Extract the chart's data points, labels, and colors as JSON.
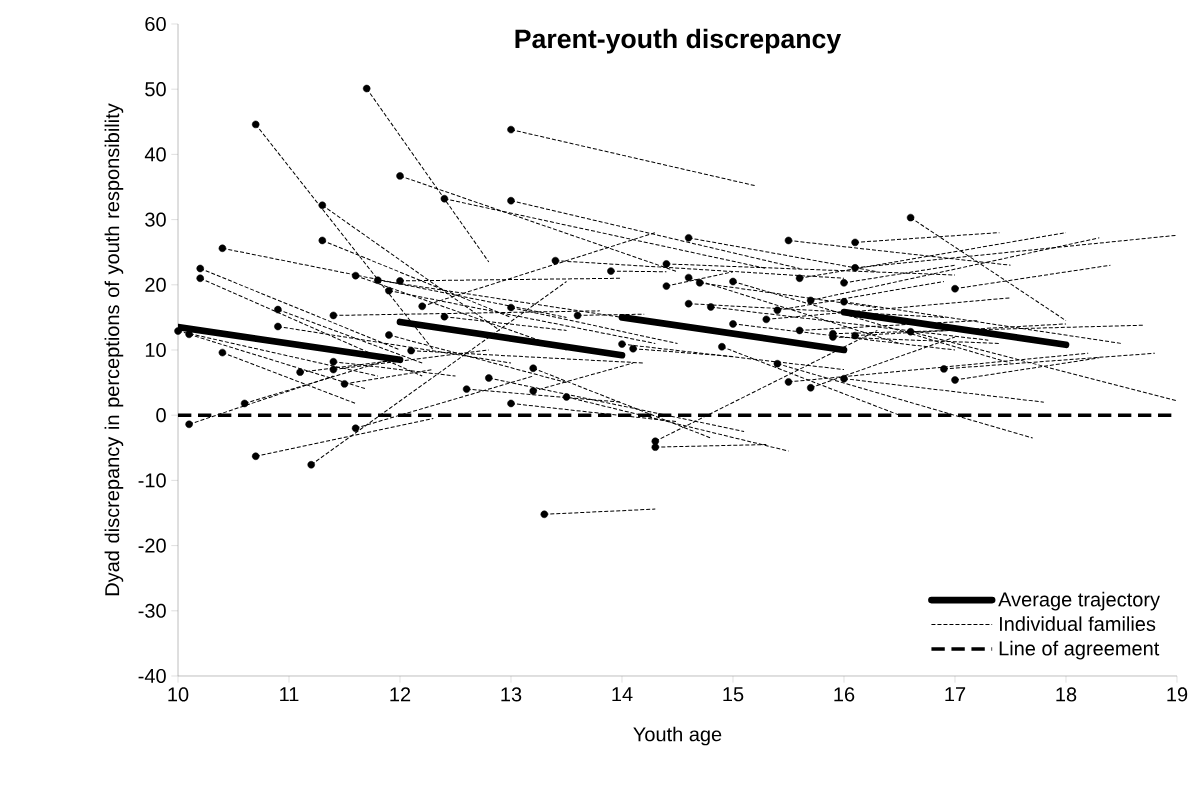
{
  "chart_data": {
    "type": "line",
    "title": "Parent-youth discrepancy",
    "xlabel": "Youth age",
    "ylabel": "Dyad discrepancy in perceptions of youth responsibility",
    "xlim": [
      10,
      19
    ],
    "ylim": [
      -40,
      60
    ],
    "xticks": [
      10,
      11,
      12,
      13,
      14,
      15,
      16,
      17,
      18,
      19
    ],
    "yticks": [
      -40,
      -30,
      -20,
      -10,
      0,
      10,
      20,
      30,
      40,
      50,
      60
    ],
    "legend": "bottom right",
    "series": [
      {
        "name": "Average trajectory",
        "color": "#000000",
        "marker": "none",
        "line_style": "solid",
        "x": [
          10,
          12,
          null,
          12,
          14,
          null,
          14,
          16,
          null,
          16,
          18
        ],
        "values": [
          13.5,
          8.5,
          null,
          14.3,
          9.2,
          null,
          15,
          10,
          null,
          15.8,
          10.8
        ]
      },
      {
        "name": "Individual families",
        "color": "#000000",
        "marker": "circle",
        "line_style": "dashed",
        "x": [
          10.0,
          11.8
        ],
        "values": [
          12.9,
          6.0
        ]
      },
      {
        "color": "#000000",
        "marker": "circle",
        "line_style": "dashed",
        "x": [
          10.1,
          11.7
        ],
        "values": [
          12.4,
          4.0
        ]
      },
      {
        "color": "#000000",
        "marker": "circle",
        "line_style": "dashed",
        "x": [
          10.1,
          11.4
        ],
        "values": [
          -1.4,
          6.0
        ]
      },
      {
        "color": "#000000",
        "marker": "circle",
        "line_style": "dashed",
        "x": [
          10.2,
          12.0
        ],
        "values": [
          22.5,
          10.0
        ]
      },
      {
        "color": "#000000",
        "marker": "circle",
        "line_style": "dashed",
        "x": [
          10.2,
          12.2
        ],
        "values": [
          21.0,
          6.0
        ]
      },
      {
        "color": "#000000",
        "marker": "circle",
        "line_style": "dashed",
        "x": [
          10.4,
          13.5
        ],
        "values": [
          25.6,
          15.0
        ]
      },
      {
        "color": "#000000",
        "marker": "circle",
        "line_style": "dashed",
        "x": [
          10.4,
          11.6
        ],
        "values": [
          9.6,
          1.8
        ]
      },
      {
        "color": "#000000",
        "marker": "circle",
        "line_style": "dashed",
        "x": [
          10.6,
          12.0
        ],
        "values": [
          1.8,
          9.0
        ]
      },
      {
        "color": "#000000",
        "marker": "circle",
        "line_style": "dashed",
        "x": [
          10.7,
          12.3
        ],
        "values": [
          44.6,
          10.0
        ]
      },
      {
        "color": "#000000",
        "marker": "circle",
        "line_style": "dashed",
        "x": [
          10.7,
          12.3
        ],
        "values": [
          -6.3,
          -0.5
        ]
      },
      {
        "color": "#000000",
        "marker": "circle",
        "line_style": "dashed",
        "x": [
          10.9,
          12.2
        ],
        "values": [
          16.2,
          8.0
        ]
      },
      {
        "color": "#000000",
        "marker": "circle",
        "line_style": "dashed",
        "x": [
          10.9,
          13.0
        ],
        "values": [
          13.6,
          8.0
        ]
      },
      {
        "color": "#000000",
        "marker": "circle",
        "line_style": "dashed",
        "x": [
          11.1,
          12.0
        ],
        "values": [
          6.6,
          8.5
        ]
      },
      {
        "color": "#000000",
        "marker": "circle",
        "line_style": "dashed",
        "x": [
          11.2,
          13.5
        ],
        "values": [
          -7.6,
          20.5
        ]
      },
      {
        "color": "#000000",
        "marker": "circle",
        "line_style": "dashed",
        "x": [
          11.3,
          12.9
        ],
        "values": [
          32.2,
          13.0
        ]
      },
      {
        "color": "#000000",
        "marker": "circle",
        "line_style": "dashed",
        "x": [
          11.3,
          13.0
        ],
        "values": [
          26.8,
          15.0
        ]
      },
      {
        "color": "#000000",
        "marker": "circle",
        "line_style": "dashed",
        "x": [
          11.4,
          13.8
        ],
        "values": [
          15.3,
          16.0
        ]
      },
      {
        "color": "#000000",
        "marker": "circle",
        "line_style": "dashed",
        "x": [
          11.4,
          12.5
        ],
        "values": [
          8.2,
          6.0
        ]
      },
      {
        "color": "#000000",
        "marker": "circle",
        "line_style": "dashed",
        "x": [
          11.4,
          12.8
        ],
        "values": [
          7.0,
          10.0
        ]
      },
      {
        "color": "#000000",
        "marker": "circle",
        "line_style": "dashed",
        "x": [
          11.5,
          12.3
        ],
        "values": [
          4.8,
          7.0
        ]
      },
      {
        "color": "#000000",
        "marker": "circle",
        "line_style": "dashed",
        "x": [
          11.6,
          13.5
        ],
        "values": [
          21.4,
          10.0
        ]
      },
      {
        "color": "#000000",
        "marker": "circle",
        "line_style": "dashed",
        "x": [
          11.6,
          13.2
        ],
        "values": [
          -2.0,
          6.0
        ]
      },
      {
        "color": "#000000",
        "marker": "circle",
        "line_style": "dashed",
        "x": [
          11.7,
          12.8
        ],
        "values": [
          50.1,
          23.5
        ]
      },
      {
        "color": "#000000",
        "marker": "circle",
        "line_style": "dashed",
        "x": [
          11.8,
          14.0
        ],
        "values": [
          20.7,
          15.0
        ]
      },
      {
        "color": "#000000",
        "marker": "circle",
        "line_style": "dashed",
        "x": [
          11.9,
          14.3
        ],
        "values": [
          19.1,
          11.0
        ]
      },
      {
        "color": "#000000",
        "marker": "circle",
        "line_style": "dashed",
        "x": [
          11.9,
          13.5
        ],
        "values": [
          12.3,
          5.0
        ]
      },
      {
        "color": "#000000",
        "marker": "circle",
        "line_style": "dashed",
        "x": [
          12.0,
          14.5
        ],
        "values": [
          36.7,
          22.0
        ]
      },
      {
        "color": "#000000",
        "marker": "circle",
        "line_style": "dashed",
        "x": [
          12.0,
          14.0
        ],
        "values": [
          20.6,
          21.0
        ]
      },
      {
        "color": "#000000",
        "marker": "circle",
        "line_style": "dashed",
        "x": [
          12.1,
          14.2
        ],
        "values": [
          9.9,
          8.0
        ]
      },
      {
        "color": "#000000",
        "marker": "circle",
        "line_style": "dashed",
        "x": [
          12.2,
          14.3
        ],
        "values": [
          16.7,
          28.0
        ]
      },
      {
        "color": "#000000",
        "marker": "circle",
        "line_style": "dashed",
        "x": [
          12.4,
          15.3
        ],
        "values": [
          33.2,
          22.5
        ]
      },
      {
        "color": "#000000",
        "marker": "circle",
        "line_style": "dashed",
        "x": [
          12.4,
          13.5
        ],
        "values": [
          15.1,
          13.0
        ]
      },
      {
        "color": "#000000",
        "marker": "circle",
        "line_style": "dashed",
        "x": [
          12.6,
          14.0
        ],
        "values": [
          4.0,
          2.0
        ]
      },
      {
        "color": "#000000",
        "marker": "circle",
        "line_style": "dashed",
        "x": [
          12.8,
          15.1
        ],
        "values": [
          5.7,
          -2.5
        ]
      },
      {
        "color": "#000000",
        "marker": "circle",
        "line_style": "dashed",
        "x": [
          13.0,
          15.2
        ],
        "values": [
          43.8,
          35.2
        ]
      },
      {
        "color": "#000000",
        "marker": "circle",
        "line_style": "dashed",
        "x": [
          13.0,
          15.6
        ],
        "values": [
          32.9,
          22.5
        ]
      },
      {
        "color": "#000000",
        "marker": "circle",
        "line_style": "dashed",
        "x": [
          13.0,
          14.5
        ],
        "values": [
          16.5,
          11.0
        ]
      },
      {
        "color": "#000000",
        "marker": "circle",
        "line_style": "dashed",
        "x": [
          13.0,
          14.5
        ],
        "values": [
          1.8,
          -1.0
        ]
      },
      {
        "color": "#000000",
        "marker": "circle",
        "line_style": "dashed",
        "x": [
          13.2,
          14.8
        ],
        "values": [
          7.2,
          -3.5
        ]
      },
      {
        "color": "#000000",
        "marker": "circle",
        "line_style": "dashed",
        "x": [
          13.2,
          14.1
        ],
        "values": [
          3.7,
          8.0
        ]
      },
      {
        "color": "#000000",
        "marker": "circle",
        "line_style": "dashed",
        "x": [
          13.3,
          14.3
        ],
        "values": [
          -15.2,
          -14.4
        ]
      },
      {
        "color": "#000000",
        "marker": "circle",
        "line_style": "dashed",
        "x": [
          13.4,
          16.0
        ],
        "values": [
          23.7,
          21.0
        ]
      },
      {
        "color": "#000000",
        "marker": "circle",
        "line_style": "dashed",
        "x": [
          13.5,
          15.5
        ],
        "values": [
          2.8,
          -5.5
        ]
      },
      {
        "color": "#000000",
        "marker": "circle",
        "line_style": "dashed",
        "x": [
          13.6,
          14.2
        ],
        "values": [
          15.3,
          15.5
        ]
      },
      {
        "color": "#000000",
        "marker": "circle",
        "line_style": "dashed",
        "x": [
          13.9,
          14.4
        ],
        "values": [
          22.1,
          22.0
        ]
      },
      {
        "color": "#000000",
        "marker": "circle",
        "line_style": "dashed",
        "x": [
          14.0,
          16.0
        ],
        "values": [
          10.9,
          7.0
        ]
      },
      {
        "color": "#000000",
        "marker": "circle",
        "line_style": "dashed",
        "x": [
          14.1,
          15.0
        ],
        "values": [
          10.2,
          9.0
        ]
      },
      {
        "color": "#000000",
        "marker": "circle",
        "line_style": "dashed",
        "x": [
          14.3,
          16.3
        ],
        "values": [
          -4.0,
          13.0
        ]
      },
      {
        "color": "#000000",
        "marker": "circle",
        "line_style": "dashed",
        "x": [
          14.3,
          15.3
        ],
        "values": [
          -4.9,
          -4.5
        ]
      },
      {
        "color": "#000000",
        "marker": "circle",
        "line_style": "dashed",
        "x": [
          14.4,
          17.0
        ],
        "values": [
          23.2,
          21.5
        ]
      },
      {
        "color": "#000000",
        "marker": "circle",
        "line_style": "dashed",
        "x": [
          14.4,
          15.0
        ],
        "values": [
          19.8,
          22.0
        ]
      },
      {
        "color": "#000000",
        "marker": "circle",
        "line_style": "dashed",
        "x": [
          14.6,
          16.3
        ],
        "values": [
          27.2,
          22.0
        ]
      },
      {
        "color": "#000000",
        "marker": "circle",
        "line_style": "dashed",
        "x": [
          14.6,
          16.5
        ],
        "values": [
          21.1,
          11.0
        ]
      },
      {
        "color": "#000000",
        "marker": "circle",
        "line_style": "dashed",
        "x": [
          14.6,
          16.9
        ],
        "values": [
          17.1,
          15.0
        ]
      },
      {
        "color": "#000000",
        "marker": "circle",
        "line_style": "dashed",
        "x": [
          14.7,
          16.3
        ],
        "values": [
          20.3,
          16.5
        ]
      },
      {
        "color": "#000000",
        "marker": "circle",
        "line_style": "dashed",
        "x": [
          14.8,
          17.3
        ],
        "values": [
          16.6,
          11.5
        ]
      },
      {
        "color": "#000000",
        "marker": "circle",
        "line_style": "dashed",
        "x": [
          14.9,
          16.5
        ],
        "values": [
          10.5,
          0.0
        ]
      },
      {
        "color": "#000000",
        "marker": "circle",
        "line_style": "dashed",
        "x": [
          15.0,
          17.5
        ],
        "values": [
          20.5,
          8.0
        ]
      },
      {
        "color": "#000000",
        "marker": "circle",
        "line_style": "dashed",
        "x": [
          15.0,
          17.0
        ],
        "values": [
          14.0,
          10.0
        ]
      },
      {
        "color": "#000000",
        "marker": "circle",
        "line_style": "dashed",
        "x": [
          15.3,
          17.5
        ],
        "values": [
          14.7,
          18.0
        ]
      },
      {
        "color": "#000000",
        "marker": "circle",
        "line_style": "dashed",
        "x": [
          15.4,
          16.9
        ],
        "values": [
          16.1,
          20.5
        ]
      },
      {
        "color": "#000000",
        "marker": "circle",
        "line_style": "dashed",
        "x": [
          15.4,
          17.7
        ],
        "values": [
          7.9,
          -3.5
        ]
      },
      {
        "color": "#000000",
        "marker": "circle",
        "line_style": "dashed",
        "x": [
          15.5,
          17.5
        ],
        "values": [
          26.8,
          23.0
        ]
      },
      {
        "color": "#000000",
        "marker": "circle",
        "line_style": "dashed",
        "x": [
          15.5,
          18.2
        ],
        "values": [
          5.1,
          9.5
        ]
      },
      {
        "color": "#000000",
        "marker": "circle",
        "line_style": "dashed",
        "x": [
          15.6,
          18.0
        ],
        "values": [
          21.0,
          28.0
        ]
      },
      {
        "color": "#000000",
        "marker": "circle",
        "line_style": "dashed",
        "x": [
          15.6,
          17.2
        ],
        "values": [
          13.0,
          14.5
        ]
      },
      {
        "color": "#000000",
        "marker": "circle",
        "line_style": "dashed",
        "x": [
          15.7,
          18.3
        ],
        "values": [
          17.6,
          27.2
        ]
      },
      {
        "color": "#000000",
        "marker": "circle",
        "line_style": "dashed",
        "x": [
          15.7,
          17.0
        ],
        "values": [
          4.2,
          12.0
        ]
      },
      {
        "color": "#000000",
        "marker": "circle",
        "line_style": "dashed",
        "x": [
          15.9,
          18.7
        ],
        "values": [
          12.5,
          13.8
        ]
      },
      {
        "color": "#000000",
        "marker": "circle",
        "line_style": "dashed",
        "x": [
          15.9,
          17.4
        ],
        "values": [
          12.0,
          11.0
        ]
      },
      {
        "color": "#000000",
        "marker": "circle",
        "line_style": "dashed",
        "x": [
          16.0,
          17.0
        ],
        "values": [
          20.3,
          23.0
        ]
      },
      {
        "color": "#000000",
        "marker": "circle",
        "line_style": "dashed",
        "x": [
          16.0,
          18.5
        ],
        "values": [
          17.4,
          11.0
        ]
      },
      {
        "color": "#000000",
        "marker": "circle",
        "line_style": "dashed",
        "x": [
          16.0,
          17.8
        ],
        "values": [
          5.6,
          2.0
        ]
      },
      {
        "color": "#000000",
        "marker": "circle",
        "line_style": "dashed",
        "x": [
          16.1,
          17.4
        ],
        "values": [
          26.5,
          28.0
        ]
      },
      {
        "color": "#000000",
        "marker": "circle",
        "line_style": "dashed",
        "x": [
          16.1,
          19.0
        ],
        "values": [
          22.6,
          27.6
        ]
      },
      {
        "color": "#000000",
        "marker": "circle",
        "line_style": "dashed",
        "x": [
          16.1,
          18.0
        ],
        "values": [
          12.2,
          14.0
        ]
      },
      {
        "color": "#000000",
        "marker": "circle",
        "line_style": "dashed",
        "x": [
          16.6,
          18.0
        ],
        "values": [
          30.3,
          14.5
        ]
      },
      {
        "color": "#000000",
        "marker": "circle",
        "line_style": "dashed",
        "x": [
          16.6,
          19.0
        ],
        "values": [
          12.8,
          2.2
        ]
      },
      {
        "color": "#000000",
        "marker": "circle",
        "line_style": "dashed",
        "x": [
          16.9,
          18.8
        ],
        "values": [
          7.1,
          9.5
        ]
      },
      {
        "color": "#000000",
        "marker": "circle",
        "line_style": "dashed",
        "x": [
          17.0,
          18.4
        ],
        "values": [
          19.4,
          23.0
        ]
      },
      {
        "color": "#000000",
        "marker": "circle",
        "line_style": "dashed",
        "x": [
          17.0,
          18.3
        ],
        "values": [
          5.4,
          8.8
        ]
      }
    ],
    "ref_lines": [
      {
        "axis": "y",
        "value": 0,
        "label": "Line of agreement",
        "color": "#000000",
        "line_style": "dashed"
      }
    ]
  }
}
